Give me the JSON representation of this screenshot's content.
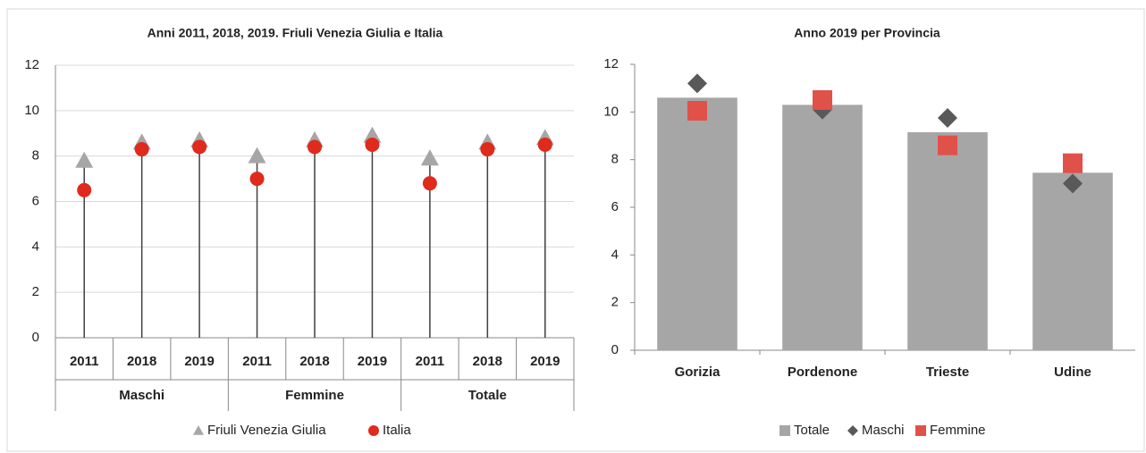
{
  "chart_data": [
    {
      "type": "dot",
      "title": "Anni 2011, 2018, 2019. Friuli Venezia Giulia e Italia",
      "categories": [
        "2011",
        "2018",
        "2019",
        "2011",
        "2018",
        "2019",
        "2011",
        "2018",
        "2019"
      ],
      "groups": [
        "Maschi",
        "Femmine",
        "Totale"
      ],
      "series": [
        {
          "name": "Friuli Venezia Giulia",
          "color": "#a6a6a6",
          "marker": "triangle",
          "values": [
            7.8,
            8.6,
            8.7,
            8.0,
            8.7,
            8.9,
            7.9,
            8.6,
            8.8
          ]
        },
        {
          "name": "Italia",
          "color": "#e02a1c",
          "marker": "circle",
          "values": [
            6.5,
            8.3,
            8.4,
            7.0,
            8.4,
            8.5,
            6.8,
            8.3,
            8.5
          ]
        }
      ],
      "ylim": [
        0,
        12
      ],
      "yticks": [
        0,
        2,
        4,
        6,
        8,
        10,
        12
      ],
      "grid": true
    },
    {
      "type": "bar",
      "title": "Anno 2019 per Provincia",
      "categories": [
        "Gorizia",
        "Pordenone",
        "Trieste",
        "Udine"
      ],
      "series": [
        {
          "name": "Totale",
          "color": "#a6a6a6",
          "marker": "bar",
          "values": [
            10.6,
            10.3,
            9.15,
            7.45
          ]
        },
        {
          "name": "Maschi",
          "color": "#595959",
          "marker": "diamond",
          "values": [
            11.2,
            10.1,
            9.75,
            7.0
          ]
        },
        {
          "name": "Femmine",
          "color": "#e0514a",
          "marker": "square",
          "values": [
            10.05,
            10.5,
            8.6,
            7.85
          ]
        }
      ],
      "ylim": [
        0,
        12
      ],
      "yticks": [
        0,
        2,
        4,
        6,
        8,
        10,
        12
      ],
      "grid": false
    }
  ]
}
